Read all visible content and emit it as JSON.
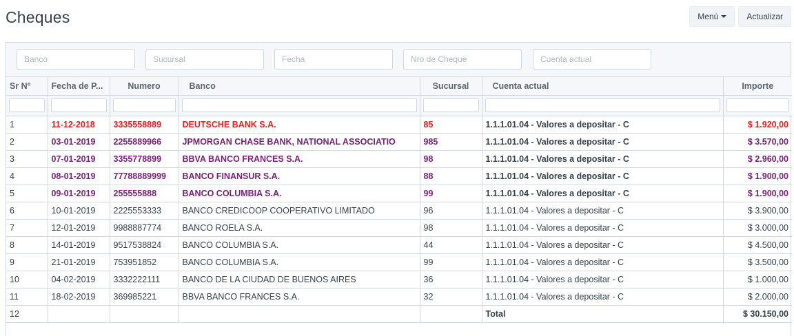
{
  "header": {
    "title": "Cheques",
    "menu_label": "Menú",
    "refresh_label": "Actualizar"
  },
  "filters": [
    {
      "placeholder": "Banco"
    },
    {
      "placeholder": "Sucursal"
    },
    {
      "placeholder": "Fecha"
    },
    {
      "placeholder": "Nro de Cheque"
    },
    {
      "placeholder": "Cuenta actual"
    }
  ],
  "columns": [
    "Sr Nº",
    "Fecha de P...",
    "Numero",
    "Banco",
    "Sucursal",
    "Cuenta actual",
    "Importe"
  ],
  "colors": {
    "overdue": "#ee1c1c",
    "pending": "#7b1f7a",
    "normal": "#36414c"
  },
  "rows": [
    {
      "sr": "1",
      "fecha": "11-12-2018",
      "numero": "3335558889",
      "banco": "DEUTSCHE BANK S.A.",
      "sucursal": "85",
      "cuenta": "1.1.1.01.04 - Valores a depositar - C",
      "importe": "$ 1.920,00",
      "style": "red"
    },
    {
      "sr": "2",
      "fecha": "03-01-2019",
      "numero": "2255889966",
      "banco": "JPMORGAN CHASE BANK, NATIONAL ASSOCIATIO",
      "sucursal": "985",
      "cuenta": "1.1.1.01.04 - Valores a depositar - C",
      "importe": "$ 3.570,00",
      "style": "purple"
    },
    {
      "sr": "3",
      "fecha": "07-01-2019",
      "numero": "3355778899",
      "banco": "BBVA BANCO FRANCES S.A.",
      "sucursal": "98",
      "cuenta": "1.1.1.01.04 - Valores a depositar - C",
      "importe": "$ 2.960,00",
      "style": "purple"
    },
    {
      "sr": "4",
      "fecha": "08-01-2019",
      "numero": "77788889999",
      "banco": "BANCO FINANSUR S.A.",
      "sucursal": "88",
      "cuenta": "1.1.1.01.04 - Valores a depositar - C",
      "importe": "$ 1.900,00",
      "style": "purple"
    },
    {
      "sr": "5",
      "fecha": "09-01-2019",
      "numero": "255555888",
      "banco": "BANCO COLUMBIA S.A.",
      "sucursal": "99",
      "cuenta": "1.1.1.01.04 - Valores a depositar - C",
      "importe": "$ 1.900,00",
      "style": "purple"
    },
    {
      "sr": "6",
      "fecha": "10-01-2019",
      "numero": "2225553333",
      "banco": "BANCO CREDICOOP COOPERATIVO LIMITADO",
      "sucursal": "96",
      "cuenta": "1.1.1.01.04 - Valores a depositar - C",
      "importe": "$ 3.900,00",
      "style": "plain"
    },
    {
      "sr": "7",
      "fecha": "12-01-2019",
      "numero": "9988887774",
      "banco": "BANCO ROELA S.A.",
      "sucursal": "98",
      "cuenta": "1.1.1.01.04 - Valores a depositar - C",
      "importe": "$ 3.000,00",
      "style": "plain"
    },
    {
      "sr": "8",
      "fecha": "14-01-2019",
      "numero": "9517538824",
      "banco": "BANCO COLUMBIA S.A.",
      "sucursal": "44",
      "cuenta": "1.1.1.01.04 - Valores a depositar - C",
      "importe": "$ 4.500,00",
      "style": "plain"
    },
    {
      "sr": "9",
      "fecha": "21-01-2019",
      "numero": "753951852",
      "banco": "BANCO COLUMBIA S.A.",
      "sucursal": "99",
      "cuenta": "1.1.1.01.04 - Valores a depositar - C",
      "importe": "$ 3.500,00",
      "style": "plain"
    },
    {
      "sr": "10",
      "fecha": "04-02-2019",
      "numero": "3332222111",
      "banco": "BANCO DE LA CIUDAD DE BUENOS AIRES",
      "sucursal": "36",
      "cuenta": "1.1.1.01.04 - Valores a depositar - C",
      "importe": "$ 1.000,00",
      "style": "plain"
    },
    {
      "sr": "11",
      "fecha": "18-02-2019",
      "numero": "369985221",
      "banco": "BBVA BANCO FRANCES S.A.",
      "sucursal": "32",
      "cuenta": "1.1.1.01.04 - Valores a depositar - C",
      "importe": "$ 2.000,00",
      "style": "plain"
    }
  ],
  "total_row": {
    "sr": "12",
    "label": "Total",
    "importe": "$ 30.150,00"
  }
}
